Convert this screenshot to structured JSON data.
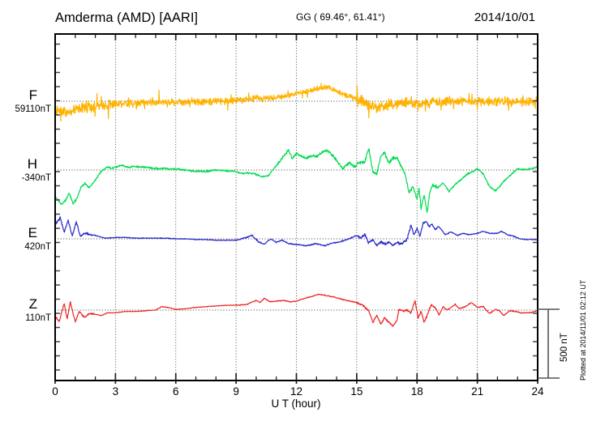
{
  "header": {
    "title": "Amderma (AMD)  [AARI]",
    "coords": "GG ( 69.46°,  61.41°)",
    "date": "2014/10/01"
  },
  "xaxis": {
    "label": "U T (hour)",
    "tick_labels": [
      "0",
      "3",
      "6",
      "9",
      "12",
      "15",
      "18",
      "21",
      "24"
    ],
    "major_ticks_hours": [
      0,
      3,
      6,
      9,
      12,
      15,
      18,
      21,
      24
    ],
    "minor_step_hours": 1,
    "range_hours": [
      0,
      24
    ]
  },
  "scale_bar": {
    "label": "500 nT",
    "nT": 500
  },
  "footer_note": "Plotted at 2014/11/01 02:12 UT",
  "colors": {
    "background": "#ffffff",
    "frame": "#000000",
    "grid": "#3a3a3a",
    "F": "#FFB300",
    "H": "#00DC50",
    "E": "#2828CC",
    "Z": "#EE2222"
  },
  "chart_data": {
    "type": "line",
    "x_unit": "UT hour",
    "x_range": [
      0,
      24
    ],
    "grid": "dotted vertical every 3 h, dotted horizontal at each component baseline",
    "series": [
      {
        "name": "F",
        "baseline_nT": 59110,
        "baseline_label": "59110nT",
        "color": "#FFB300",
        "spikiness": 2.8,
        "noise_nT": [
          [
            0,
            3,
            45
          ],
          [
            3,
            10.5,
            32
          ],
          [
            10.5,
            15,
            24
          ],
          [
            15,
            17,
            48
          ],
          [
            17,
            24,
            40
          ]
        ],
        "points": [
          [
            0,
            59035
          ],
          [
            0.3,
            59050
          ],
          [
            0.7,
            59020
          ],
          [
            1.2,
            59060
          ],
          [
            2,
            59075
          ],
          [
            3,
            59090
          ],
          [
            4,
            59100
          ],
          [
            5,
            59105
          ],
          [
            6,
            59105
          ],
          [
            7,
            59110
          ],
          [
            8,
            59110
          ],
          [
            9,
            59115
          ],
          [
            10,
            59130
          ],
          [
            11,
            59135
          ],
          [
            11.5,
            59150
          ],
          [
            12,
            59170
          ],
          [
            12.5,
            59180
          ],
          [
            13,
            59200
          ],
          [
            13.5,
            59215
          ],
          [
            14,
            59185
          ],
          [
            14.5,
            59150
          ],
          [
            15,
            59130
          ],
          [
            15.5,
            59090
          ],
          [
            16,
            59070
          ],
          [
            16.5,
            59080
          ],
          [
            17,
            59090
          ],
          [
            17.5,
            59100
          ],
          [
            18,
            59090
          ],
          [
            18.5,
            59095
          ],
          [
            19,
            59100
          ],
          [
            19.5,
            59110
          ],
          [
            20,
            59105
          ],
          [
            21,
            59110
          ],
          [
            22,
            59105
          ],
          [
            23,
            59110
          ],
          [
            24,
            59110
          ]
        ]
      },
      {
        "name": "H",
        "baseline_nT": -340,
        "baseline_label": "-340nT",
        "color": "#00DC50",
        "spikiness": 1.6,
        "noise_nT": [
          [
            0,
            11,
            8
          ],
          [
            11,
            15,
            12
          ],
          [
            15,
            19,
            16
          ],
          [
            19,
            24,
            8
          ]
        ],
        "points": [
          [
            0,
            -530
          ],
          [
            0.3,
            -590
          ],
          [
            0.5,
            -565
          ],
          [
            0.7,
            -505
          ],
          [
            0.9,
            -590
          ],
          [
            1.1,
            -540
          ],
          [
            1.3,
            -460
          ],
          [
            1.5,
            -440
          ],
          [
            1.7,
            -470
          ],
          [
            2,
            -410
          ],
          [
            2.3,
            -350
          ],
          [
            2.6,
            -315
          ],
          [
            2.8,
            -330
          ],
          [
            3,
            -320
          ],
          [
            3.3,
            -305
          ],
          [
            3.6,
            -320
          ],
          [
            4,
            -315
          ],
          [
            4.5,
            -320
          ],
          [
            5,
            -330
          ],
          [
            5.5,
            -330
          ],
          [
            6,
            -335
          ],
          [
            6.5,
            -340
          ],
          [
            7,
            -350
          ],
          [
            7.5,
            -350
          ],
          [
            8,
            -340
          ],
          [
            8.5,
            -345
          ],
          [
            9,
            -350
          ],
          [
            9.3,
            -365
          ],
          [
            9.6,
            -360
          ],
          [
            10,
            -370
          ],
          [
            10.3,
            -390
          ],
          [
            10.6,
            -380
          ],
          [
            11,
            -310
          ],
          [
            11.3,
            -250
          ],
          [
            11.6,
            -195
          ],
          [
            11.8,
            -255
          ],
          [
            12,
            -220
          ],
          [
            12.2,
            -240
          ],
          [
            12.5,
            -255
          ],
          [
            12.8,
            -235
          ],
          [
            13,
            -245
          ],
          [
            13.3,
            -210
          ],
          [
            13.5,
            -195
          ],
          [
            13.8,
            -235
          ],
          [
            14,
            -270
          ],
          [
            14.3,
            -330
          ],
          [
            14.6,
            -290
          ],
          [
            14.9,
            -315
          ],
          [
            15.1,
            -290
          ],
          [
            15.4,
            -280
          ],
          [
            15.6,
            -180
          ],
          [
            15.8,
            -350
          ],
          [
            16,
            -370
          ],
          [
            16.2,
            -235
          ],
          [
            16.4,
            -220
          ],
          [
            16.6,
            -290
          ],
          [
            16.8,
            -255
          ],
          [
            17,
            -250
          ],
          [
            17.2,
            -310
          ],
          [
            17.4,
            -370
          ],
          [
            17.6,
            -505
          ],
          [
            17.8,
            -460
          ],
          [
            18,
            -555
          ],
          [
            18.1,
            -470
          ],
          [
            18.2,
            -625
          ],
          [
            18.35,
            -520
          ],
          [
            18.5,
            -650
          ],
          [
            18.65,
            -490
          ],
          [
            18.8,
            -445
          ],
          [
            19,
            -470
          ],
          [
            19.3,
            -435
          ],
          [
            19.6,
            -495
          ],
          [
            19.9,
            -445
          ],
          [
            20.2,
            -410
          ],
          [
            20.5,
            -370
          ],
          [
            20.8,
            -350
          ],
          [
            21,
            -330
          ],
          [
            21.3,
            -370
          ],
          [
            21.6,
            -460
          ],
          [
            21.9,
            -490
          ],
          [
            22.1,
            -460
          ],
          [
            22.4,
            -410
          ],
          [
            22.7,
            -370
          ],
          [
            23,
            -330
          ],
          [
            23.3,
            -335
          ],
          [
            23.6,
            -335
          ],
          [
            24,
            -315
          ]
        ]
      },
      {
        "name": "E",
        "baseline_nT": 420,
        "baseline_label": "420nT",
        "color": "#2828CC",
        "spikiness": 1.6,
        "noise_nT": [
          [
            0,
            2,
            10
          ],
          [
            2,
            9,
            3
          ],
          [
            9,
            15,
            5
          ],
          [
            15,
            19,
            10
          ],
          [
            19,
            24,
            4
          ]
        ],
        "points": [
          [
            0,
            520
          ],
          [
            0.25,
            575
          ],
          [
            0.45,
            470
          ],
          [
            0.65,
            555
          ],
          [
            0.85,
            440
          ],
          [
            1.05,
            545
          ],
          [
            1.25,
            440
          ],
          [
            1.5,
            460
          ],
          [
            1.8,
            450
          ],
          [
            2.1,
            440
          ],
          [
            2.5,
            425
          ],
          [
            3,
            430
          ],
          [
            3.5,
            430
          ],
          [
            4,
            425
          ],
          [
            4.5,
            425
          ],
          [
            5,
            425
          ],
          [
            5.5,
            425
          ],
          [
            6,
            420
          ],
          [
            6.5,
            420
          ],
          [
            7,
            415
          ],
          [
            7.5,
            415
          ],
          [
            8,
            410
          ],
          [
            8.5,
            410
          ],
          [
            9,
            410
          ],
          [
            9.4,
            425
          ],
          [
            9.8,
            445
          ],
          [
            10.1,
            400
          ],
          [
            10.4,
            380
          ],
          [
            10.7,
            420
          ],
          [
            11,
            395
          ],
          [
            11.3,
            410
          ],
          [
            11.6,
            385
          ],
          [
            12,
            380
          ],
          [
            12.5,
            370
          ],
          [
            13,
            385
          ],
          [
            13.4,
            370
          ],
          [
            13.8,
            390
          ],
          [
            14.2,
            400
          ],
          [
            14.6,
            420
          ],
          [
            15,
            445
          ],
          [
            15.2,
            425
          ],
          [
            15.4,
            450
          ],
          [
            15.6,
            390
          ],
          [
            15.8,
            415
          ],
          [
            16,
            370
          ],
          [
            16.2,
            400
          ],
          [
            16.4,
            380
          ],
          [
            16.6,
            395
          ],
          [
            16.8,
            370
          ],
          [
            17,
            395
          ],
          [
            17.2,
            380
          ],
          [
            17.5,
            415
          ],
          [
            17.7,
            520
          ],
          [
            17.85,
            450
          ],
          [
            18,
            495
          ],
          [
            18.15,
            440
          ],
          [
            18.3,
            535
          ],
          [
            18.45,
            545
          ],
          [
            18.6,
            510
          ],
          [
            18.75,
            525
          ],
          [
            18.9,
            485
          ],
          [
            19.05,
            510
          ],
          [
            19.2,
            490
          ],
          [
            19.4,
            450
          ],
          [
            19.7,
            470
          ],
          [
            20,
            445
          ],
          [
            20.3,
            460
          ],
          [
            20.6,
            450
          ],
          [
            21,
            460
          ],
          [
            21.3,
            475
          ],
          [
            21.6,
            460
          ],
          [
            22,
            460
          ],
          [
            22.2,
            475
          ],
          [
            22.5,
            450
          ],
          [
            22.8,
            440
          ],
          [
            23.1,
            420
          ],
          [
            23.4,
            415
          ],
          [
            24,
            415
          ]
        ]
      },
      {
        "name": "Z",
        "baseline_nT": 110,
        "baseline_label": "110nT",
        "color": "#EE2222",
        "spikiness": 1.6,
        "noise_nT": [
          [
            0,
            2,
            7
          ],
          [
            2,
            9,
            2
          ],
          [
            9,
            15,
            3.5
          ],
          [
            15,
            19,
            9
          ],
          [
            19,
            24,
            4
          ]
        ],
        "points": [
          [
            0,
            70
          ],
          [
            0.2,
            25
          ],
          [
            0.45,
            160
          ],
          [
            0.6,
            45
          ],
          [
            0.75,
            170
          ],
          [
            1,
            25
          ],
          [
            1.2,
            100
          ],
          [
            1.45,
            55
          ],
          [
            1.7,
            85
          ],
          [
            2,
            80
          ],
          [
            2.3,
            70
          ],
          [
            2.6,
            90
          ],
          [
            3,
            90
          ],
          [
            3.5,
            100
          ],
          [
            4,
            100
          ],
          [
            4.5,
            105
          ],
          [
            5,
            110
          ],
          [
            5.3,
            135
          ],
          [
            5.6,
            130
          ],
          [
            6,
            115
          ],
          [
            6.5,
            120
          ],
          [
            7,
            130
          ],
          [
            7.5,
            135
          ],
          [
            8,
            140
          ],
          [
            8.5,
            145
          ],
          [
            9,
            145
          ],
          [
            9.5,
            150
          ],
          [
            10,
            180
          ],
          [
            10.2,
            165
          ],
          [
            10.4,
            195
          ],
          [
            10.7,
            170
          ],
          [
            11,
            175
          ],
          [
            11.4,
            180
          ],
          [
            11.7,
            170
          ],
          [
            12,
            175
          ],
          [
            12.4,
            195
          ],
          [
            12.8,
            210
          ],
          [
            13.1,
            225
          ],
          [
            13.5,
            215
          ],
          [
            14,
            200
          ],
          [
            14.5,
            180
          ],
          [
            15,
            165
          ],
          [
            15.3,
            145
          ],
          [
            15.6,
            105
          ],
          [
            15.8,
            20
          ],
          [
            16,
            70
          ],
          [
            16.2,
            10
          ],
          [
            16.4,
            55
          ],
          [
            16.6,
            20
          ],
          [
            16.8,
            -5
          ],
          [
            17,
            35
          ],
          [
            17.1,
            115
          ],
          [
            17.3,
            105
          ],
          [
            17.5,
            110
          ],
          [
            17.7,
            90
          ],
          [
            17.9,
            180
          ],
          [
            18.05,
            55
          ],
          [
            18.2,
            100
          ],
          [
            18.35,
            20
          ],
          [
            18.5,
            70
          ],
          [
            18.7,
            150
          ],
          [
            18.9,
            130
          ],
          [
            19.1,
            75
          ],
          [
            19.3,
            135
          ],
          [
            19.5,
            110
          ],
          [
            19.7,
            130
          ],
          [
            19.9,
            150
          ],
          [
            20.1,
            120
          ],
          [
            20.4,
            135
          ],
          [
            20.7,
            165
          ],
          [
            21,
            130
          ],
          [
            21.3,
            135
          ],
          [
            21.6,
            85
          ],
          [
            21.9,
            115
          ],
          [
            22.1,
            105
          ],
          [
            22.3,
            70
          ],
          [
            22.6,
            105
          ],
          [
            22.9,
            100
          ],
          [
            23.2,
            90
          ],
          [
            23.6,
            90
          ],
          [
            24,
            105
          ]
        ]
      }
    ]
  }
}
